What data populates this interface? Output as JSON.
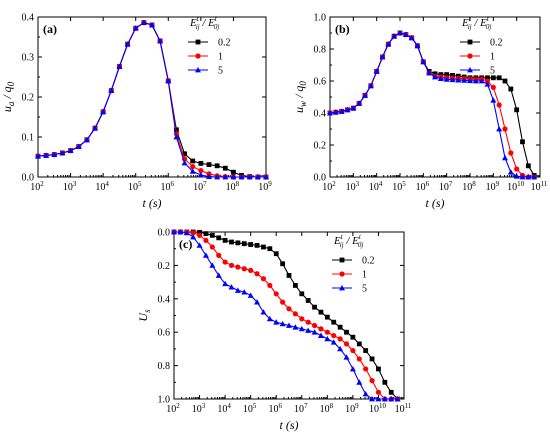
{
  "chart_data": [
    {
      "type": "line",
      "panel_label": "(a)",
      "xlabel_text": "t (s)",
      "ylabel_main": "u",
      "ylabel_sub": "a",
      "ylabel_denom": "q",
      "ylabel_denom_sub": "0",
      "xscale": "log",
      "x_exp_range": [
        2,
        9
      ],
      "xticks": [
        {
          "base": "10",
          "exp": "2"
        },
        {
          "base": "10",
          "exp": "3"
        },
        {
          "base": "10",
          "exp": "4"
        },
        {
          "base": "10",
          "exp": "5"
        },
        {
          "base": "10",
          "exp": "6"
        },
        {
          "base": "10",
          "exp": "7"
        },
        {
          "base": "10",
          "exp": "8"
        },
        {
          "base": "10",
          "exp": "9"
        }
      ],
      "ylim": [
        0,
        0.4
      ],
      "yticks": [
        "0.0",
        "0.1",
        "0.2",
        "0.3",
        "0.4"
      ],
      "yinverted": false,
      "legend_title": "E_ij^t / E_0j^t",
      "legend_position": "top-right",
      "series": [
        {
          "name": "0.2",
          "color": "#000000",
          "marker": "square",
          "x_exp": [
            2,
            2.25,
            2.5,
            2.75,
            3,
            3.25,
            3.5,
            3.75,
            4,
            4.25,
            4.5,
            4.75,
            5,
            5.25,
            5.5,
            5.75,
            6,
            6.25,
            6.5,
            6.75,
            7,
            7.25,
            7.5,
            7.75,
            8,
            8.25,
            8.5,
            8.75,
            9
          ],
          "y": [
            0.052,
            0.054,
            0.056,
            0.06,
            0.066,
            0.076,
            0.093,
            0.122,
            0.163,
            0.216,
            0.276,
            0.332,
            0.372,
            0.386,
            0.38,
            0.34,
            0.24,
            0.118,
            0.058,
            0.04,
            0.034,
            0.031,
            0.028,
            0.022,
            0.012,
            0.004,
            0.001,
            0.0,
            0.0
          ]
        },
        {
          "name": "1",
          "color": "#ff0000",
          "marker": "circle",
          "x_exp": [
            2,
            2.25,
            2.5,
            2.75,
            3,
            3.25,
            3.5,
            3.75,
            4,
            4.25,
            4.5,
            4.75,
            5,
            5.25,
            5.5,
            5.75,
            6,
            6.25,
            6.5,
            6.75,
            7,
            7.25,
            7.5,
            7.75,
            8,
            8.25,
            8.5,
            8.75,
            9
          ],
          "y": [
            0.052,
            0.054,
            0.056,
            0.06,
            0.066,
            0.076,
            0.093,
            0.122,
            0.163,
            0.216,
            0.276,
            0.332,
            0.372,
            0.386,
            0.38,
            0.34,
            0.24,
            0.108,
            0.045,
            0.026,
            0.016,
            0.008,
            0.003,
            0.001,
            0.0,
            0.0,
            0.0,
            0.0,
            0.0
          ]
        },
        {
          "name": "5",
          "color": "#0000ff",
          "marker": "triangle",
          "x_exp": [
            2,
            2.25,
            2.5,
            2.75,
            3,
            3.25,
            3.5,
            3.75,
            4,
            4.25,
            4.5,
            4.75,
            5,
            5.25,
            5.5,
            5.75,
            6,
            6.25,
            6.5,
            6.75,
            7,
            7.25,
            7.5,
            7.75,
            8,
            8.25,
            8.5,
            8.75,
            9
          ],
          "y": [
            0.052,
            0.054,
            0.056,
            0.06,
            0.066,
            0.076,
            0.093,
            0.122,
            0.163,
            0.216,
            0.276,
            0.332,
            0.372,
            0.386,
            0.38,
            0.34,
            0.24,
            0.1,
            0.035,
            0.014,
            0.005,
            0.001,
            0.0,
            0.0,
            0.0,
            0.0,
            0.0,
            0.0,
            0.0
          ]
        }
      ]
    },
    {
      "type": "line",
      "panel_label": "(b)",
      "xlabel_text": "t (s)",
      "ylabel_main": "u",
      "ylabel_sub": "w",
      "ylabel_denom": "q",
      "ylabel_denom_sub": "0",
      "xscale": "log",
      "x_exp_range": [
        2,
        11
      ],
      "xticks": [
        {
          "base": "10",
          "exp": "2"
        },
        {
          "base": "10",
          "exp": "3"
        },
        {
          "base": "10",
          "exp": "4"
        },
        {
          "base": "10",
          "exp": "5"
        },
        {
          "base": "10",
          "exp": "6"
        },
        {
          "base": "10",
          "exp": "7"
        },
        {
          "base": "10",
          "exp": "8"
        },
        {
          "base": "10",
          "exp": "9"
        },
        {
          "base": "10",
          "exp": "10"
        },
        {
          "base": "10",
          "exp": "11"
        }
      ],
      "ylim": [
        0,
        1.0
      ],
      "yticks": [
        "0.0",
        "0.2",
        "0.4",
        "0.6",
        "0.8",
        "1.0"
      ],
      "yinverted": false,
      "legend_title": "E_ij^t / E_0j^t",
      "legend_position": "top-right",
      "series": [
        {
          "name": "0.2",
          "color": "#000000",
          "marker": "square",
          "x_exp": [
            2,
            2.25,
            2.5,
            2.75,
            3,
            3.25,
            3.5,
            3.75,
            4,
            4.25,
            4.5,
            4.75,
            5,
            5.25,
            5.5,
            5.75,
            6,
            6.25,
            6.5,
            6.75,
            7,
            7.25,
            7.5,
            7.75,
            8,
            8.25,
            8.5,
            8.75,
            9,
            9.25,
            9.5,
            9.75,
            10,
            10.25,
            10.5,
            10.75
          ],
          "y": [
            0.4,
            0.405,
            0.41,
            0.42,
            0.43,
            0.46,
            0.51,
            0.57,
            0.66,
            0.75,
            0.83,
            0.88,
            0.9,
            0.89,
            0.87,
            0.82,
            0.72,
            0.66,
            0.645,
            0.64,
            0.64,
            0.635,
            0.63,
            0.625,
            0.62,
            0.62,
            0.62,
            0.62,
            0.62,
            0.62,
            0.6,
            0.55,
            0.42,
            0.22,
            0.07,
            0.01
          ]
        },
        {
          "name": "1",
          "color": "#ff0000",
          "marker": "circle",
          "x_exp": [
            2,
            2.25,
            2.5,
            2.75,
            3,
            3.25,
            3.5,
            3.75,
            4,
            4.25,
            4.5,
            4.75,
            5,
            5.25,
            5.5,
            5.75,
            6,
            6.25,
            6.5,
            6.75,
            7,
            7.25,
            7.5,
            7.75,
            8,
            8.25,
            8.5,
            8.75,
            9,
            9.25,
            9.5,
            9.75,
            10,
            10.25,
            10.5,
            10.75
          ],
          "y": [
            0.4,
            0.405,
            0.41,
            0.42,
            0.43,
            0.46,
            0.51,
            0.57,
            0.66,
            0.75,
            0.83,
            0.88,
            0.9,
            0.89,
            0.87,
            0.82,
            0.72,
            0.65,
            0.63,
            0.625,
            0.62,
            0.618,
            0.616,
            0.614,
            0.612,
            0.61,
            0.61,
            0.6,
            0.56,
            0.45,
            0.3,
            0.15,
            0.05,
            0.01,
            0.0,
            0.0
          ]
        },
        {
          "name": "5",
          "color": "#0000ff",
          "marker": "triangle",
          "x_exp": [
            2,
            2.25,
            2.5,
            2.75,
            3,
            3.25,
            3.5,
            3.75,
            4,
            4.25,
            4.5,
            4.75,
            5,
            5.25,
            5.5,
            5.75,
            6,
            6.25,
            6.5,
            6.75,
            7,
            7.25,
            7.5,
            7.75,
            8,
            8.25,
            8.5,
            8.75,
            9,
            9.25,
            9.5,
            9.75,
            10,
            10.25,
            10.5,
            10.75
          ],
          "y": [
            0.4,
            0.405,
            0.41,
            0.42,
            0.43,
            0.46,
            0.51,
            0.57,
            0.66,
            0.75,
            0.83,
            0.88,
            0.9,
            0.89,
            0.87,
            0.82,
            0.72,
            0.65,
            0.625,
            0.615,
            0.61,
            0.608,
            0.606,
            0.604,
            0.602,
            0.6,
            0.6,
            0.58,
            0.48,
            0.3,
            0.12,
            0.03,
            0.005,
            0.0,
            0.0,
            0.0
          ]
        }
      ]
    },
    {
      "type": "line",
      "panel_label": "(c)",
      "xlabel_text": "t (s)",
      "ylabel_main": "U",
      "ylabel_sub": "s",
      "xscale": "log",
      "x_exp_range": [
        2,
        11
      ],
      "xticks": [
        {
          "base": "10",
          "exp": "2"
        },
        {
          "base": "10",
          "exp": "3"
        },
        {
          "base": "10",
          "exp": "4"
        },
        {
          "base": "10",
          "exp": "5"
        },
        {
          "base": "10",
          "exp": "6"
        },
        {
          "base": "10",
          "exp": "7"
        },
        {
          "base": "10",
          "exp": "8"
        },
        {
          "base": "10",
          "exp": "9"
        },
        {
          "base": "10",
          "exp": "10"
        },
        {
          "base": "10",
          "exp": "11"
        }
      ],
      "ylim": [
        0,
        1.0
      ],
      "yticks": [
        "0.0",
        "0.2",
        "0.4",
        "0.6",
        "0.8",
        "1.0"
      ],
      "yinverted": true,
      "legend_title": "E_ij^t / E_0j^t",
      "legend_position": "top-right",
      "series": [
        {
          "name": "0.2",
          "color": "#000000",
          "marker": "square",
          "x_exp": [
            2,
            2.25,
            2.5,
            2.75,
            3,
            3.25,
            3.5,
            3.75,
            4,
            4.25,
            4.5,
            4.75,
            5,
            5.25,
            5.5,
            5.75,
            6,
            6.25,
            6.5,
            6.75,
            7,
            7.25,
            7.5,
            7.75,
            8,
            8.25,
            8.5,
            8.75,
            9,
            9.25,
            9.5,
            9.75,
            10,
            10.25,
            10.5,
            10.75
          ],
          "y": [
            0.0,
            0.0,
            0.0,
            0.0,
            0.002,
            0.01,
            0.02,
            0.035,
            0.05,
            0.06,
            0.065,
            0.07,
            0.075,
            0.08,
            0.09,
            0.1,
            0.13,
            0.19,
            0.26,
            0.32,
            0.37,
            0.41,
            0.45,
            0.48,
            0.51,
            0.54,
            0.57,
            0.6,
            0.63,
            0.67,
            0.71,
            0.76,
            0.82,
            0.9,
            0.96,
            1.0
          ]
        },
        {
          "name": "1",
          "color": "#ff0000",
          "marker": "circle",
          "x_exp": [
            2,
            2.25,
            2.5,
            2.75,
            3,
            3.25,
            3.5,
            3.75,
            4,
            4.25,
            4.5,
            4.75,
            5,
            5.25,
            5.5,
            5.75,
            6,
            6.25,
            6.5,
            6.75,
            7,
            7.25,
            7.5,
            7.75,
            8,
            8.25,
            8.5,
            8.75,
            9,
            9.25,
            9.5,
            9.75,
            10,
            10.25,
            10.5,
            10.75
          ],
          "y": [
            0.0,
            0.0,
            0.0,
            0.005,
            0.02,
            0.05,
            0.09,
            0.14,
            0.18,
            0.2,
            0.21,
            0.22,
            0.23,
            0.25,
            0.28,
            0.32,
            0.37,
            0.42,
            0.46,
            0.49,
            0.52,
            0.54,
            0.56,
            0.58,
            0.6,
            0.62,
            0.64,
            0.67,
            0.71,
            0.76,
            0.82,
            0.89,
            0.96,
            1.0,
            1.0,
            1.0
          ]
        },
        {
          "name": "5",
          "color": "#0000ff",
          "marker": "triangle",
          "x_exp": [
            2,
            2.25,
            2.5,
            2.75,
            3,
            3.25,
            3.5,
            3.75,
            4,
            4.25,
            4.5,
            4.75,
            5,
            5.25,
            5.5,
            5.75,
            6,
            6.25,
            6.5,
            6.75,
            7,
            7.25,
            7.5,
            7.75,
            8,
            8.25,
            8.5,
            8.75,
            9,
            9.25,
            9.5,
            9.75,
            10,
            10.25,
            10.5,
            10.75
          ],
          "y": [
            0.0,
            0.0,
            0.005,
            0.03,
            0.08,
            0.14,
            0.2,
            0.26,
            0.31,
            0.33,
            0.35,
            0.36,
            0.38,
            0.42,
            0.48,
            0.52,
            0.54,
            0.55,
            0.56,
            0.57,
            0.58,
            0.59,
            0.6,
            0.62,
            0.64,
            0.66,
            0.7,
            0.75,
            0.82,
            0.9,
            0.97,
            1.0,
            1.0,
            1.0,
            1.0,
            1.0
          ]
        }
      ]
    }
  ]
}
